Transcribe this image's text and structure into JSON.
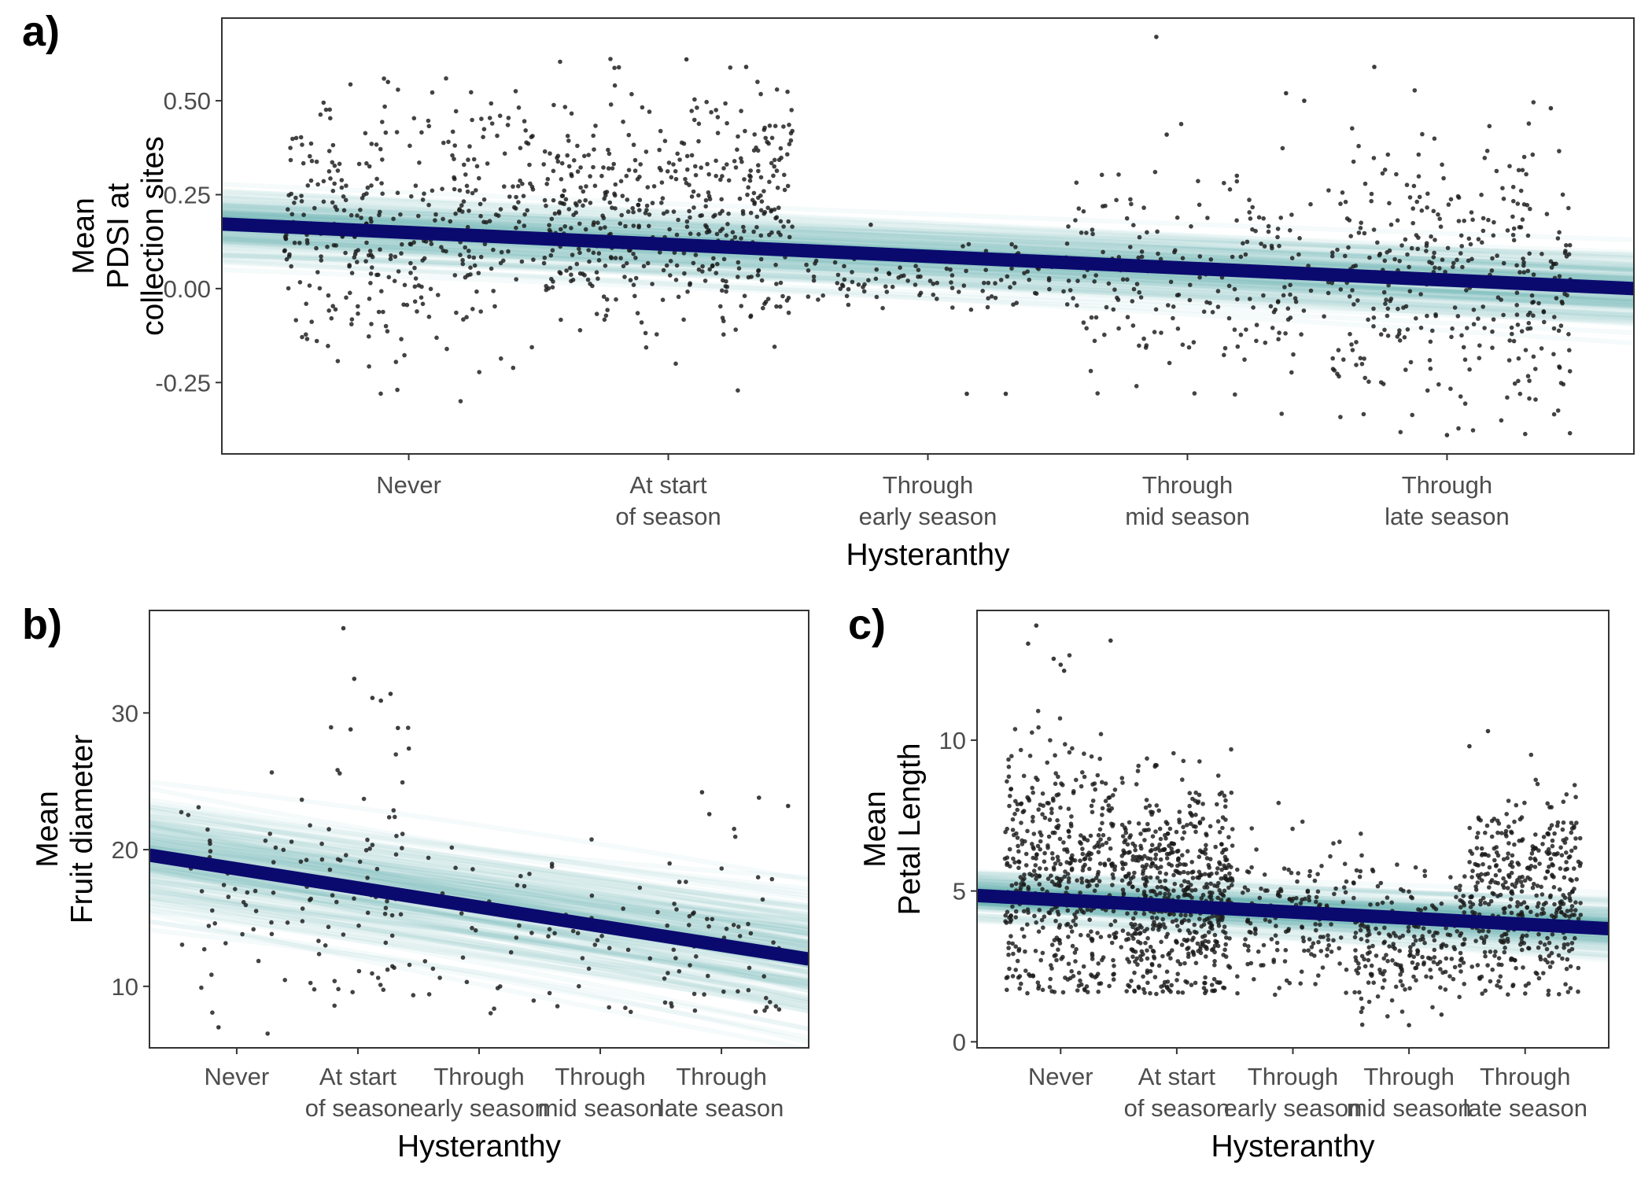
{
  "colors": {
    "trend_line": "#0a0a6e",
    "posterior_band": "#4ea9a8",
    "points": "#1a1a1a",
    "frame": "#333333",
    "tick_text": "#4d4d4d"
  },
  "chart_data": [
    {
      "type": "scatter",
      "panel_label": "a)",
      "xlabel": "Hysteranthy",
      "ylabel": [
        "Mean",
        "PDSI at",
        "collection sites"
      ],
      "categories": [
        "Never",
        "At start of season",
        "Through early season",
        "Through mid season",
        "Through late season"
      ],
      "category_tick_lines": [
        [
          "Never"
        ],
        [
          "At start",
          "of season"
        ],
        [
          "Through",
          "early season"
        ],
        [
          "Through",
          "mid season"
        ],
        [
          "Through",
          "late season"
        ]
      ],
      "x_range": [
        0.28,
        5.72
      ],
      "ylim": [
        -0.44,
        0.72
      ],
      "yticks": [
        -0.25,
        0.0,
        0.25,
        0.5
      ],
      "ytick_labels": [
        "-0.25",
        "0.00",
        "0.25",
        "0.50"
      ],
      "trend": {
        "x": [
          0.28,
          5.72
        ],
        "y": [
          0.172,
          0.0
        ]
      },
      "band": {
        "x0": 0.28,
        "x1": 5.72,
        "sd_intercept": 0.045,
        "sd_slope": 0.022,
        "sd_floor": 0.012
      },
      "point_groups": [
        {
          "category": "Never",
          "x_from": 0.52,
          "x_to": 1.48,
          "count": 380,
          "mean": 0.17,
          "sd": 0.17,
          "y_min": -0.3,
          "y_max": 0.56,
          "outliers": [
            [
              0.92,
              0.55
            ]
          ]
        },
        {
          "category": "At start of season",
          "x_from": 1.52,
          "x_to": 2.48,
          "count": 500,
          "mean": 0.19,
          "sd": 0.16,
          "y_min": -0.3,
          "y_max": 0.62,
          "outliers": [
            [
              2.07,
              0.61
            ],
            [
              2.3,
              0.59
            ]
          ]
        },
        {
          "category": "Through early season",
          "x_from": 2.52,
          "x_to": 3.48,
          "count": 110,
          "mean": 0.03,
          "sd": 0.04,
          "y_min": -0.06,
          "y_max": 0.12,
          "outliers": [
            [
              3.15,
              -0.28
            ],
            [
              3.3,
              -0.28
            ],
            [
              2.78,
              0.17
            ]
          ]
        },
        {
          "category": "Through mid season",
          "x_from": 3.52,
          "x_to": 4.48,
          "count": 210,
          "mean": 0.03,
          "sd": 0.14,
          "y_min": -0.34,
          "y_max": 0.68,
          "outliers": [
            [
              3.88,
              0.67
            ],
            [
              3.92,
              0.41
            ],
            [
              4.38,
              0.52
            ],
            [
              4.45,
              0.5
            ]
          ]
        },
        {
          "category": "Through late season",
          "x_from": 4.52,
          "x_to": 5.48,
          "count": 360,
          "mean": 0.02,
          "sd": 0.17,
          "y_min": -0.4,
          "y_max": 0.6,
          "outliers": [
            [
              4.72,
              0.59
            ],
            [
              5.0,
              -0.39
            ],
            [
              5.4,
              0.48
            ]
          ]
        }
      ]
    },
    {
      "type": "scatter",
      "panel_label": "b)",
      "xlabel": "Hysteranthy",
      "ylabel": [
        "Mean",
        "Fruit diameter"
      ],
      "categories": [
        "Never",
        "At start of season",
        "Through early season",
        "Through mid season",
        "Through late season"
      ],
      "category_tick_lines": [
        [
          "Never"
        ],
        [
          "At start",
          "of season"
        ],
        [
          "Through",
          "early season"
        ],
        [
          "Through",
          "mid season"
        ],
        [
          "Through",
          "late season"
        ]
      ],
      "x_range": [
        0.28,
        5.72
      ],
      "ylim": [
        5.5,
        37.5
      ],
      "yticks": [
        10,
        20,
        30
      ],
      "ytick_labels": [
        "10",
        "20",
        "30"
      ],
      "trend": {
        "x": [
          0.28,
          5.72
        ],
        "y": [
          19.6,
          12.0
        ]
      },
      "band": {
        "x0": 0.28,
        "x1": 5.72,
        "sd_intercept": 2.0,
        "sd_slope": 1.1,
        "sd_floor": 0.5
      },
      "point_groups": [
        {
          "category": "Never",
          "x_from": 0.52,
          "x_to": 1.48,
          "count": 45,
          "mean": 17.0,
          "sd": 4.0,
          "y_min": 6.5,
          "y_max": 28.0,
          "outliers": [
            [
              0.85,
              7.0
            ]
          ]
        },
        {
          "category": "At start of season",
          "x_from": 1.52,
          "x_to": 2.48,
          "count": 75,
          "mean": 17.5,
          "sd": 5.5,
          "y_min": 8.5,
          "y_max": 36.5,
          "outliers": [
            [
              1.88,
              36.2
            ],
            [
              1.97,
              32.5
            ],
            [
              2.12,
              31.1
            ],
            [
              2.19,
              30.9
            ],
            [
              2.27,
              31.4
            ],
            [
              2.33,
              28.9
            ],
            [
              2.42,
              27.4
            ],
            [
              1.94,
              28.8
            ]
          ]
        },
        {
          "category": "Through early season",
          "x_from": 2.52,
          "x_to": 3.48,
          "count": 30,
          "mean": 14.5,
          "sd": 3.3,
          "y_min": 8.0,
          "y_max": 22.0,
          "outliers": []
        },
        {
          "category": "Through mid season",
          "x_from": 3.52,
          "x_to": 4.48,
          "count": 30,
          "mean": 13.5,
          "sd": 2.8,
          "y_min": 8.0,
          "y_max": 21.0,
          "outliers": []
        },
        {
          "category": "Through late season",
          "x_from": 4.52,
          "x_to": 5.48,
          "count": 60,
          "mean": 13.0,
          "sd": 4.0,
          "y_min": 8.0,
          "y_max": 24.5,
          "outliers": [
            [
              4.84,
              24.2
            ],
            [
              5.31,
              23.8
            ],
            [
              4.9,
              22.6
            ],
            [
              5.55,
              23.2
            ]
          ]
        }
      ]
    },
    {
      "type": "scatter",
      "panel_label": "c)",
      "xlabel": "Hysteranthy",
      "ylabel": [
        "Mean",
        "Petal Length"
      ],
      "categories": [
        "Never",
        "At start of season",
        "Through early season",
        "Through mid season",
        "Through late season"
      ],
      "category_tick_lines": [
        [
          "Never"
        ],
        [
          "At start",
          "of season"
        ],
        [
          "Through",
          "early season"
        ],
        [
          "Through",
          "mid season"
        ],
        [
          "Through",
          "late season"
        ]
      ],
      "x_range": [
        0.28,
        5.72
      ],
      "ylim": [
        -0.2,
        14.3
      ],
      "yticks": [
        0,
        5,
        10
      ],
      "ytick_labels": [
        "0",
        "5",
        "10"
      ],
      "trend": {
        "x": [
          0.28,
          5.72
        ],
        "y": [
          4.85,
          3.75
        ]
      },
      "band": {
        "x0": 0.28,
        "x1": 5.72,
        "sd_intercept": 0.35,
        "sd_slope": 0.2,
        "sd_floor": 0.08
      },
      "point_groups": [
        {
          "category": "Never",
          "x_from": 0.52,
          "x_to": 1.48,
          "count": 480,
          "mean": 5.4,
          "sd": 2.3,
          "y_min": 1.6,
          "y_max": 13.9,
          "outliers": [
            [
              0.79,
              13.8
            ],
            [
              0.72,
              13.2
            ],
            [
              1.43,
              13.3
            ],
            [
              0.94,
              12.7
            ],
            [
              1.0,
              12.5
            ],
            [
              1.03,
              12.3
            ]
          ]
        },
        {
          "category": "At start of season",
          "x_from": 1.52,
          "x_to": 2.48,
          "count": 620,
          "mean": 4.9,
          "sd": 1.8,
          "y_min": 1.5,
          "y_max": 10.2,
          "outliers": []
        },
        {
          "category": "Through early season",
          "x_from": 2.52,
          "x_to": 3.48,
          "count": 160,
          "mean": 4.1,
          "sd": 1.3,
          "y_min": 1.3,
          "y_max": 8.0,
          "outliers": []
        },
        {
          "category": "Through mid season",
          "x_from": 3.52,
          "x_to": 4.48,
          "count": 240,
          "mean": 3.3,
          "sd": 1.1,
          "y_min": 0.5,
          "y_max": 8.0,
          "outliers": [
            [
              4.0,
              0.55
            ],
            [
              4.28,
              0.9
            ]
          ]
        },
        {
          "category": "Through late season",
          "x_from": 4.52,
          "x_to": 5.48,
          "count": 420,
          "mean": 4.8,
          "sd": 1.6,
          "y_min": 1.5,
          "y_max": 10.5,
          "outliers": [
            [
              4.52,
              9.8
            ],
            [
              4.68,
              10.3
            ]
          ]
        }
      ]
    }
  ]
}
